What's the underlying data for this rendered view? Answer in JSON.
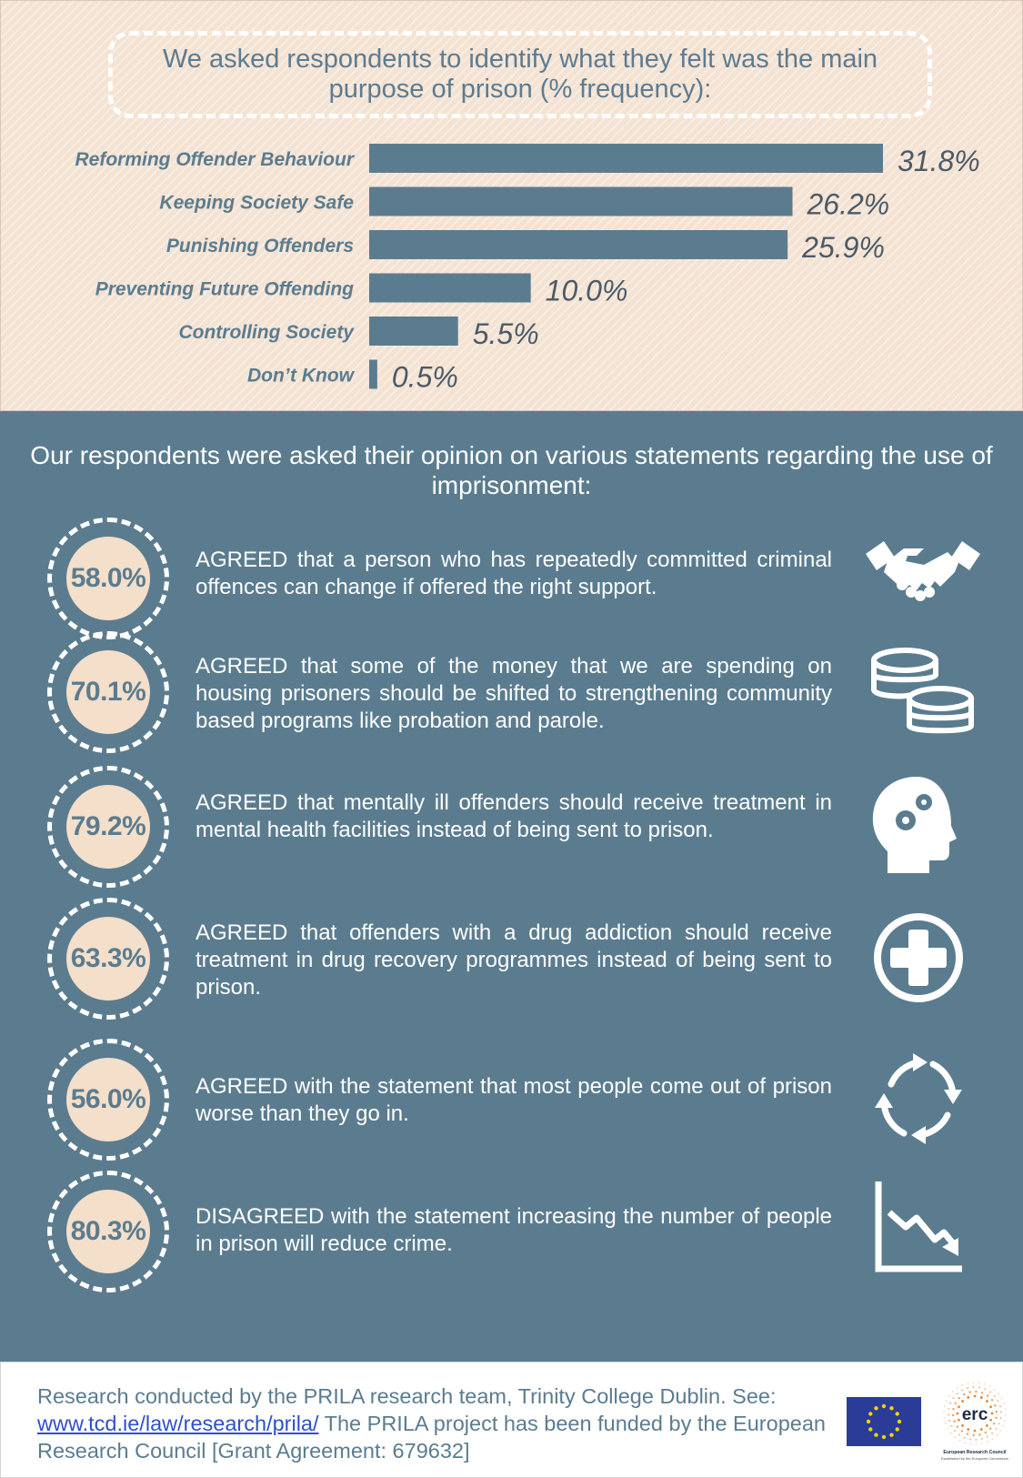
{
  "top": {
    "title": "We asked respondents to identify what they felt was the main purpose of prison (% frequency):"
  },
  "chart_data": {
    "type": "bar",
    "orientation": "horizontal",
    "categories": [
      "Reforming Offender Behaviour",
      "Keeping Society Safe",
      "Punishing Offenders",
      "Preventing Future Offending",
      "Controlling Society",
      "Don’t Know"
    ],
    "values": [
      31.8,
      26.2,
      25.9,
      10.0,
      5.5,
      0.5
    ],
    "value_labels": [
      "31.8%",
      "26.2%",
      "25.9%",
      "10.0%",
      "5.5%",
      "0.5%"
    ],
    "xlim": [
      0,
      31.8
    ],
    "grid": false,
    "bar_color": "#5b7c8f",
    "label_color": "#5b7c8f"
  },
  "statements": {
    "title": "Our respondents were asked their opinion on various statements regarding the use of imprisonment:",
    "items": [
      {
        "percent": "58.0%",
        "text": "AGREED that a person who has repeatedly committed criminal offences can change if offered the right support.",
        "icon": "handshake-icon"
      },
      {
        "percent": "70.1%",
        "text": "AGREED that some of the money that we are spending on housing prisoners should be shifted to strengthening community based programs like probation and parole.",
        "icon": "coins-icon"
      },
      {
        "percent": "79.2%",
        "text": "AGREED that mentally ill offenders should receive treatment in mental health facilities instead of being sent to prison.",
        "icon": "head-gears-icon"
      },
      {
        "percent": "63.3%",
        "text": "AGREED that offenders with a drug addiction should receive treatment in drug recovery programmes instead of being sent to prison.",
        "icon": "medical-cross-icon"
      },
      {
        "percent": "56.0%",
        "text": "AGREED with the statement that most people come out of prison worse than they go in.",
        "icon": "cycle-arrows-icon"
      },
      {
        "percent": "80.3%",
        "text": "DISAGREED with the statement increasing the number of people in prison will reduce crime.",
        "icon": "declining-chart-icon"
      }
    ]
  },
  "footer": {
    "text_before": "Research conducted by the PRILA research team, Trinity College Dublin. See: ",
    "link": "www.tcd.ie/law/research/prila/",
    "text_after": " The PRILA project has been funded by the European Research Council [Grant Agreement: 679632]",
    "erc_logo_text": "erc",
    "erc_caption": "European Research Council",
    "erc_subcaption": "Established by the European Commission"
  },
  "colors": {
    "panel_blue": "#5b7c8f",
    "peach": "#f4dfcb"
  }
}
